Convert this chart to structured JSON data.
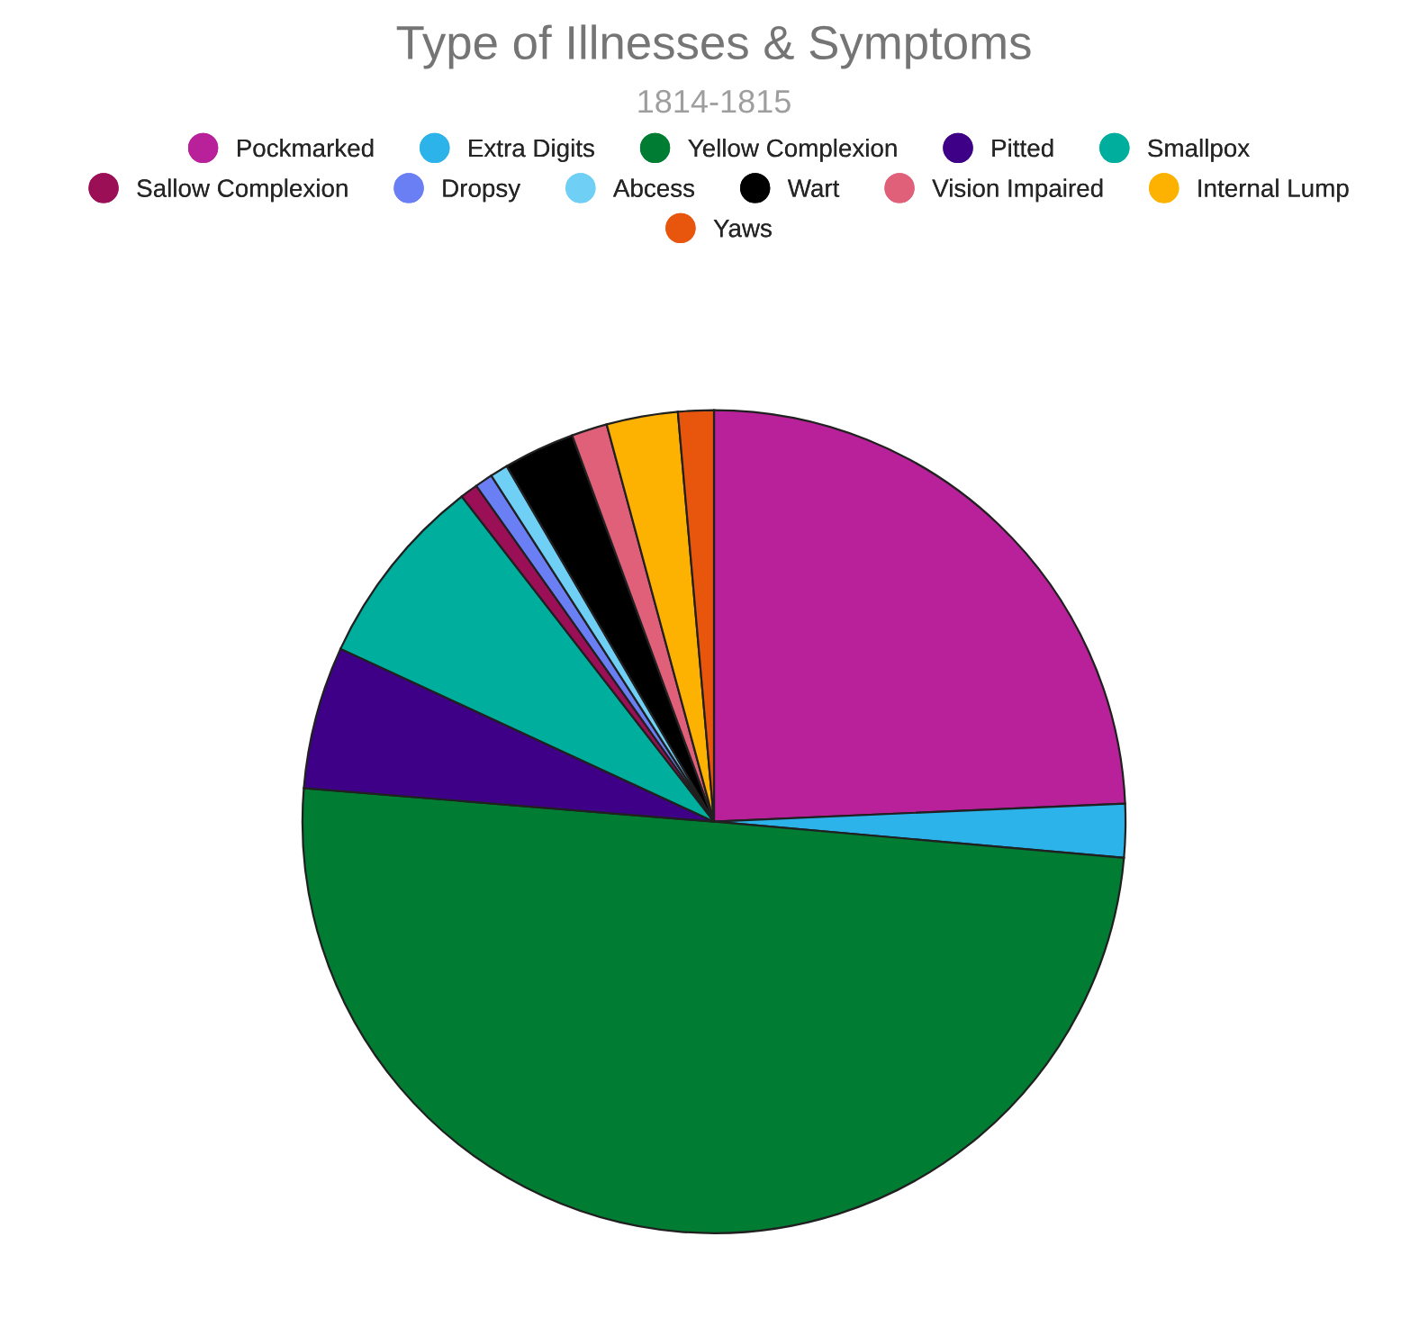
{
  "chart_data": {
    "type": "pie",
    "title": "Type of Illnesses & Symptoms",
    "subtitle": "1814-1815",
    "categories": [
      "Pockmarked",
      "Extra Digits",
      "Yellow Complexion",
      "Pitted",
      "Smallpox",
      "Sallow Complexion",
      "Dropsy",
      "Abcess",
      "Wart",
      "Vision Impaired",
      "Internal Lump",
      "Yaws"
    ],
    "values": [
      24.3,
      2.1,
      49.9,
      5.6,
      7.6,
      0.7,
      0.7,
      0.7,
      2.8,
      1.4,
      2.8,
      1.4
    ],
    "colors": [
      "#b8219a",
      "#2cb3ea",
      "#007d32",
      "#3f0088",
      "#00ae9d",
      "#9b0f57",
      "#6b7ff5",
      "#6fcff5",
      "#000000",
      "#e0607a",
      "#fdb100",
      "#e8560e"
    ],
    "legend": "top"
  }
}
